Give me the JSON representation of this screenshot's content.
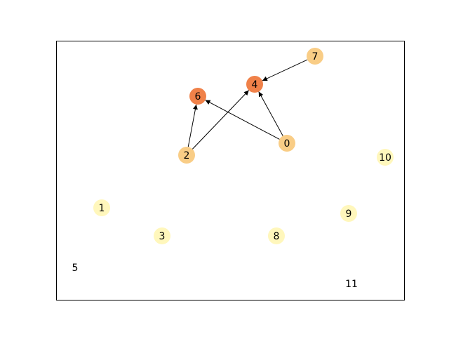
{
  "graph": {
    "directed": true,
    "colors": {
      "frame": "#000000",
      "edge": "#000000",
      "label": "#000000"
    },
    "nodes": [
      {
        "id": "0",
        "label": "0",
        "color": "#f9cd86"
      },
      {
        "id": "1",
        "label": "1",
        "color": "#fff7bc"
      },
      {
        "id": "2",
        "label": "2",
        "color": "#f9cd86"
      },
      {
        "id": "3",
        "label": "3",
        "color": "#fff7bc"
      },
      {
        "id": "4",
        "label": "4",
        "color": "#f08149"
      },
      {
        "id": "5",
        "label": "5",
        "color": null
      },
      {
        "id": "6",
        "label": "6",
        "color": "#f08149"
      },
      {
        "id": "7",
        "label": "7",
        "color": "#f9cd86"
      },
      {
        "id": "8",
        "label": "8",
        "color": "#fff7bc"
      },
      {
        "id": "9",
        "label": "9",
        "color": "#fff7bc"
      },
      {
        "id": "10",
        "label": "10",
        "color": "#fff7bc"
      },
      {
        "id": "11",
        "label": "11",
        "color": null
      }
    ],
    "edges": [
      {
        "from": "7",
        "to": "4"
      },
      {
        "from": "0",
        "to": "4"
      },
      {
        "from": "0",
        "to": "6"
      },
      {
        "from": "2",
        "to": "6"
      },
      {
        "from": "2",
        "to": "4"
      }
    ]
  }
}
